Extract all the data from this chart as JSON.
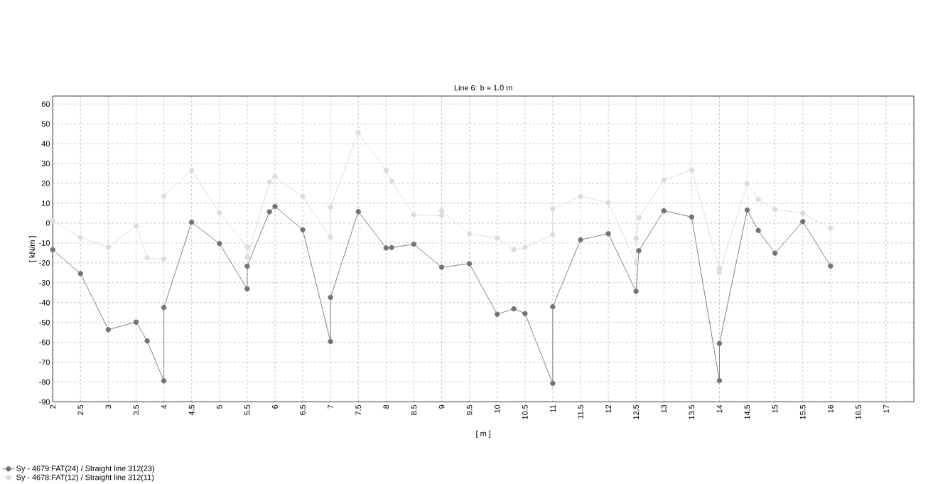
{
  "chart_data": {
    "type": "line",
    "title": "Line 6: b = 1.0 m",
    "xlabel": "[ m ]",
    "ylabel": "[ kN/m ]",
    "xlim": [
      2,
      17.5
    ],
    "ylim": [
      -90,
      64
    ],
    "xticks": [
      2,
      2.5,
      3,
      3.5,
      4,
      4.5,
      5,
      5.5,
      6,
      6.5,
      7,
      7.5,
      8,
      8.5,
      9,
      9.5,
      10,
      10.5,
      11,
      11.5,
      12,
      12.5,
      13,
      13.5,
      14,
      14.5,
      15,
      15.5,
      16,
      16.5,
      17
    ],
    "yticks": [
      -90,
      -80,
      -70,
      -60,
      -50,
      -40,
      -30,
      -20,
      -10,
      0,
      10,
      20,
      30,
      40,
      50,
      60
    ],
    "grid": true,
    "legend": "bottom left",
    "marker": "circle",
    "line_style": "solid",
    "series": [
      {
        "name": "Sy - 4679:FAT(24) / Straight line 312(23)",
        "color": "#737373",
        "x": [
          2,
          2.5,
          3,
          3.5,
          3.7,
          4,
          4,
          4.5,
          5,
          5.5,
          5.5,
          5.9,
          6,
          6.5,
          7,
          7,
          7.5,
          8,
          8.1,
          8.5,
          9,
          9.5,
          10,
          10.3,
          10.5,
          11,
          11,
          11.5,
          12,
          12.5,
          12.55,
          13,
          13.5,
          14,
          14,
          14.5,
          14.7,
          15,
          15.5,
          16
        ],
        "values": [
          -13.4,
          -25.4,
          -53.6,
          -49.8,
          -59.3,
          -79.4,
          -42.5,
          0.5,
          -10.3,
          -33.1,
          -21.7,
          5.7,
          8.4,
          -3.3,
          -59.6,
          -37.4,
          5.8,
          -12.5,
          -12.3,
          -10.6,
          -22.2,
          -20.4,
          -45.9,
          -43.1,
          -45.5,
          -80.7,
          -42.1,
          -8.4,
          -5.3,
          -34.3,
          -13.9,
          6.2,
          3.1,
          -79.3,
          -60.6,
          6.6,
          -3.7,
          -15.1,
          0.8,
          -21.6
        ]
      },
      {
        "name": "Sy - 4678:FAT(12) / Straight line 312(11)",
        "color": "#dcdcdc",
        "x": [
          2,
          2.5,
          3,
          3.5,
          3.7,
          4,
          4,
          4.5,
          5,
          5.5,
          5.5,
          5.9,
          6,
          6.5,
          7,
          7,
          7.5,
          8,
          8.1,
          8.5,
          9,
          9,
          9.5,
          10,
          10.3,
          10.5,
          11,
          11,
          11.5,
          12,
          12.5,
          12.5,
          12.55,
          13,
          13.5,
          14,
          14,
          14.5,
          14.7,
          15,
          15.5,
          16
        ],
        "values": [
          1.1,
          -7.2,
          -12.2,
          -1.4,
          -17.4,
          -18.1,
          13.7,
          26.6,
          5.3,
          -12.0,
          -17.1,
          20.7,
          23.5,
          13.4,
          -7.1,
          8.0,
          45.6,
          26.6,
          21.1,
          4.1,
          3.8,
          6.2,
          -5.3,
          -7.4,
          -13.3,
          -12.2,
          -5.9,
          7.2,
          13.4,
          10.3,
          -19.9,
          -7.6,
          2.7,
          21.8,
          26.8,
          -22.8,
          -24.6,
          19.9,
          12.0,
          6.9,
          5.0,
          -2.6
        ]
      }
    ]
  }
}
